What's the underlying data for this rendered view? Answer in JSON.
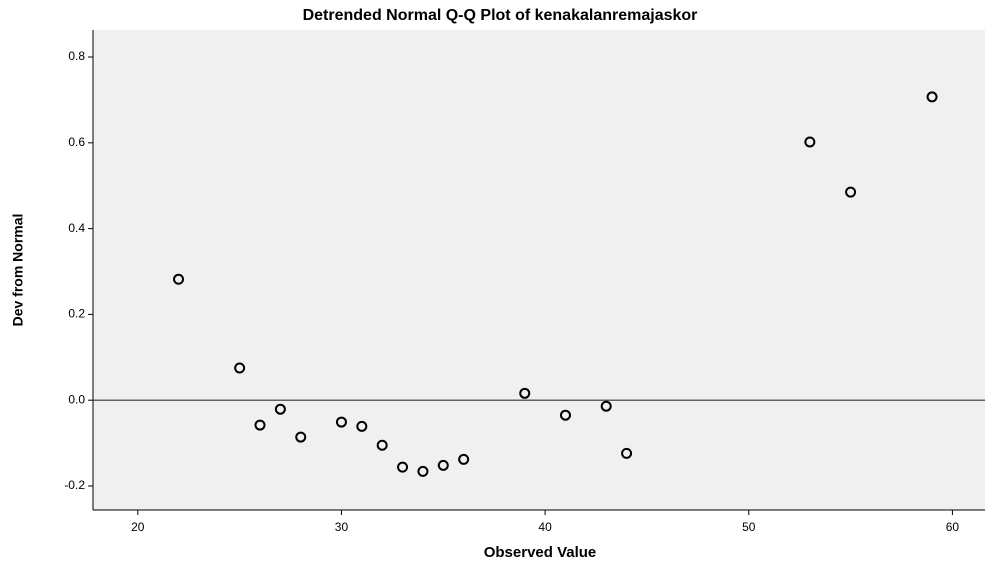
{
  "chart_data": {
    "type": "scatter",
    "title": "Detrended Normal Q-Q Plot of kenakalanremajaskor",
    "x_label": "Observed Value",
    "y_label": "Dev from Normal",
    "x": [
      22,
      25,
      26,
      27,
      28,
      30,
      31,
      32,
      33,
      34,
      35,
      36,
      39,
      41,
      43,
      44,
      53,
      55,
      59
    ],
    "values": [
      0.282,
      0.075,
      -0.058,
      -0.021,
      -0.086,
      -0.051,
      -0.061,
      -0.105,
      -0.156,
      -0.166,
      -0.152,
      -0.138,
      0.016,
      -0.035,
      -0.014,
      -0.124,
      0.602,
      0.485,
      0.707
    ],
    "color": "#000000",
    "reference_y": 0,
    "xlim": [
      17.8,
      61.6
    ],
    "ylim": [
      -0.256,
      0.863
    ],
    "xticks": [
      20,
      30,
      40,
      50,
      60
    ],
    "yticks": [
      -0.2,
      {
        "value": 0,
        "label": "0.0"
      },
      0.2,
      0.4,
      0.6,
      0.8
    ],
    "grid": false
  }
}
